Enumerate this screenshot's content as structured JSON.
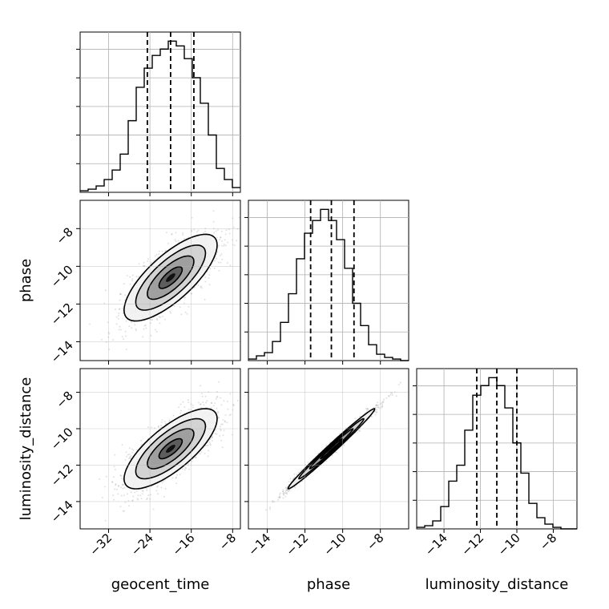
{
  "chart_data": {
    "type": "corner",
    "parameters": [
      "geocent_time",
      "phase",
      "luminosity_distance"
    ],
    "ranges": {
      "geocent_time": [
        -37.5,
        -6.5
      ],
      "phase": [
        -15.0,
        -6.5
      ],
      "luminosity_distance": [
        -15.5,
        -6.7
      ]
    },
    "ticks": {
      "geocent_time": [
        -32,
        -24,
        -16,
        -8
      ],
      "phase_x": [
        -14,
        -12,
        -10,
        -8
      ],
      "phase_y": [
        -14,
        -12,
        -10,
        -8
      ],
      "luminosity_distance_x": [
        -14,
        -12,
        -10,
        -8
      ],
      "luminosity_distance_y": [
        -14,
        -12,
        -10,
        -8
      ]
    },
    "tick_labels": {
      "geocent_time": [
        "−32",
        "−24",
        "−16",
        "−8"
      ],
      "phase_x": [
        "−14",
        "−12",
        "−10",
        "−8"
      ],
      "phase_y": [
        "−14",
        "−12",
        "−10",
        "−8"
      ],
      "luminosity_distance_x": [
        "−14",
        "−12",
        "−10",
        "−8"
      ],
      "luminosity_distance_y": [
        "−14",
        "−12",
        "−10",
        "−8"
      ]
    },
    "axis_labels": {
      "geocent_time": "geocent_time",
      "phase": "phase",
      "luminosity_distance": "luminosity_distance"
    },
    "quantiles": {
      "geocent_time": [
        -24.5,
        -20.0,
        -15.5
      ],
      "phase": [
        -11.7,
        -10.6,
        -9.4
      ],
      "luminosity_distance": [
        -12.2,
        -11.1,
        -10.0
      ]
    },
    "histograms": {
      "geocent_time": {
        "edges_start": -37.5,
        "bin_width": 1.55,
        "counts": [
          1,
          2,
          4,
          8,
          14,
          24,
          45,
          66,
          78,
          86,
          90,
          95,
          92,
          84,
          72,
          56,
          36,
          15,
          8,
          3
        ]
      },
      "phase": {
        "edges_start": -15.0,
        "bin_width": 0.425,
        "counts": [
          1,
          3,
          5,
          12,
          24,
          42,
          64,
          80,
          88,
          95,
          88,
          76,
          58,
          36,
          22,
          10,
          4,
          2,
          1,
          0
        ]
      },
      "luminosity_distance": {
        "edges_start": -15.5,
        "bin_width": 0.44,
        "counts": [
          1,
          2,
          5,
          14,
          30,
          40,
          62,
          84,
          90,
          95,
          90,
          76,
          54,
          35,
          16,
          7,
          3,
          1,
          0,
          0
        ]
      }
    },
    "correlations": {
      "phase|geocent_time": 0.75,
      "luminosity_distance|geocent_time": 0.75,
      "luminosity_distance|phase": 0.99
    },
    "grid": true,
    "colors": {
      "line": "#000000",
      "grid": "#b0b0b0",
      "samples": "#888888"
    }
  }
}
